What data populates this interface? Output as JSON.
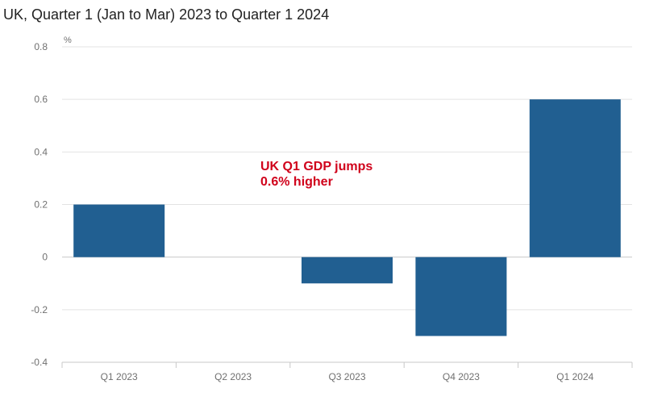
{
  "chart_data": {
    "type": "bar",
    "title": "UK, Quarter 1 (Jan to Mar) 2023 to Quarter 1 2024",
    "ylabel": "%",
    "xlabel": "",
    "categories": [
      "Q1 2023",
      "Q2 2023",
      "Q3 2023",
      "Q4 2023",
      "Q1 2024"
    ],
    "values": [
      0.2,
      0.0,
      -0.1,
      -0.3,
      0.6
    ],
    "ylim": [
      -0.4,
      0.8
    ],
    "yticks": [
      0.8,
      0.6,
      0.4,
      0.2,
      0,
      -0.2,
      -0.4
    ],
    "ytick_labels": [
      "0.8",
      "0.6",
      "0.4",
      "0.2",
      "0",
      "-0.2",
      "-0.4"
    ],
    "grid": true,
    "annotation": [
      "UK Q1 GDP jumps",
      "0.6% higher"
    ]
  },
  "colors": {
    "bar": "#215f91",
    "grid": "#e3e3e3",
    "axis": "#c8c8c8",
    "annotation": "#d0021b"
  }
}
